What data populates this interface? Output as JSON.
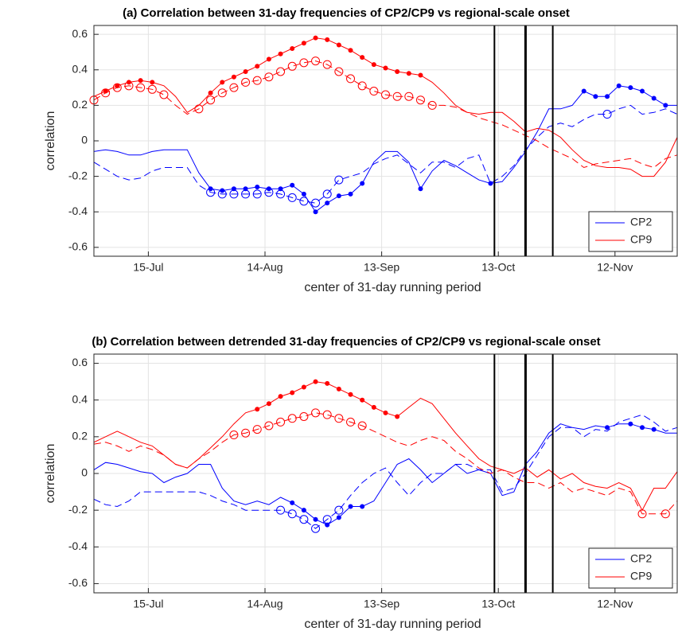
{
  "chart_data": [
    {
      "type": "line",
      "title": "(a) Correlation between 31-day frequencies of CP2/CP9 vs regional-scale onset",
      "xlabel": "center of 31-day running period",
      "ylabel": "correlation",
      "x": [
        0,
        3,
        6,
        9,
        12,
        15,
        18,
        21,
        24,
        27,
        30,
        33,
        36,
        39,
        42,
        45,
        48,
        51,
        54,
        57,
        60,
        63,
        66,
        69,
        72,
        75,
        78,
        81,
        84,
        87,
        90,
        93,
        96,
        99,
        102,
        105,
        108,
        111,
        114,
        117,
        120,
        123,
        126,
        129,
        132,
        135,
        138,
        141,
        144,
        147,
        150
      ],
      "xlim": [
        0,
        150
      ],
      "xticks": [
        {
          "value": 14,
          "label": "15-Jul"
        },
        {
          "value": 44,
          "label": "14-Aug"
        },
        {
          "value": 74,
          "label": "13-Sep"
        },
        {
          "value": 104,
          "label": "13-Oct"
        },
        {
          "value": 134,
          "label": "12-Nov"
        }
      ],
      "ylim": [
        -0.65,
        0.65
      ],
      "yticks": [
        0.6,
        0.4,
        0.2,
        0,
        -0.2,
        -0.4,
        -0.6
      ],
      "grid": true,
      "legend": "lower right",
      "vlines": [
        103,
        111,
        118
      ],
      "series": [
        {
          "name": "CP2",
          "color": "#0000ff",
          "values": [
            -0.06,
            -0.05,
            -0.06,
            -0.08,
            -0.08,
            -0.06,
            -0.05,
            -0.05,
            -0.05,
            -0.18,
            -0.27,
            -0.28,
            -0.27,
            -0.27,
            -0.26,
            -0.27,
            -0.27,
            -0.25,
            -0.3,
            -0.4,
            -0.35,
            -0.31,
            -0.3,
            -0.24,
            -0.12,
            -0.06,
            -0.06,
            -0.12,
            -0.27,
            -0.17,
            -0.11,
            -0.14,
            -0.18,
            -0.22,
            -0.24,
            -0.23,
            -0.15,
            -0.06,
            0.05,
            0.18,
            0.18,
            0.2,
            0.28,
            0.25,
            0.25,
            0.31,
            0.3,
            0.28,
            0.24,
            0.2,
            0.2
          ],
          "marked": [
            10,
            11,
            12,
            13,
            14,
            15,
            16,
            17,
            18,
            19,
            20,
            21,
            22,
            23,
            28,
            34,
            42,
            43,
            44,
            45,
            46,
            47,
            48,
            49
          ],
          "dashed_values": [
            -0.12,
            -0.16,
            -0.2,
            -0.22,
            -0.21,
            -0.17,
            -0.15,
            -0.15,
            -0.15,
            -0.25,
            -0.29,
            -0.3,
            -0.3,
            -0.3,
            -0.3,
            -0.29,
            -0.3,
            -0.32,
            -0.34,
            -0.35,
            -0.3,
            -0.22,
            -0.2,
            -0.18,
            -0.13,
            -0.1,
            -0.08,
            -0.13,
            -0.18,
            -0.12,
            -0.12,
            -0.15,
            -0.1,
            -0.08,
            -0.24,
            -0.2,
            -0.14,
            -0.05,
            0.02,
            0.08,
            0.1,
            0.08,
            0.12,
            0.15,
            0.15,
            0.18,
            0.2,
            0.15,
            0.16,
            0.18,
            0.15
          ],
          "dashed_marked": [
            10,
            11,
            12,
            13,
            14,
            15,
            16,
            17,
            18,
            19,
            20,
            21,
            44
          ]
        },
        {
          "name": "CP9",
          "color": "#ff0000",
          "values": [
            0.25,
            0.28,
            0.31,
            0.33,
            0.34,
            0.33,
            0.31,
            0.25,
            0.16,
            0.2,
            0.27,
            0.33,
            0.36,
            0.39,
            0.42,
            0.46,
            0.49,
            0.52,
            0.55,
            0.58,
            0.57,
            0.54,
            0.51,
            0.47,
            0.43,
            0.41,
            0.39,
            0.38,
            0.37,
            0.33,
            0.27,
            0.2,
            0.16,
            0.15,
            0.16,
            0.16,
            0.11,
            0.05,
            0.07,
            0.06,
            0.02,
            -0.05,
            -0.11,
            -0.14,
            -0.15,
            -0.15,
            -0.16,
            -0.2,
            -0.2,
            -0.12,
            0.02
          ],
          "marked": [
            1,
            2,
            3,
            4,
            5,
            10,
            11,
            12,
            13,
            14,
            15,
            16,
            17,
            18,
            19,
            20,
            21,
            22,
            23,
            24,
            25,
            26,
            27,
            28
          ],
          "dashed_values": [
            0.23,
            0.27,
            0.3,
            0.31,
            0.3,
            0.29,
            0.26,
            0.2,
            0.15,
            0.18,
            0.23,
            0.27,
            0.3,
            0.33,
            0.34,
            0.36,
            0.39,
            0.42,
            0.44,
            0.45,
            0.43,
            0.39,
            0.35,
            0.31,
            0.28,
            0.26,
            0.25,
            0.25,
            0.23,
            0.2,
            0.2,
            0.19,
            0.16,
            0.13,
            0.11,
            0.09,
            0.06,
            0.03,
            0,
            -0.04,
            -0.07,
            -0.1,
            -0.15,
            -0.13,
            -0.12,
            -0.11,
            -0.1,
            -0.13,
            -0.15,
            -0.1,
            -0.08
          ],
          "dashed_marked": [
            0,
            1,
            2,
            3,
            4,
            5,
            6,
            9,
            10,
            11,
            12,
            13,
            14,
            15,
            16,
            17,
            18,
            19,
            20,
            21,
            22,
            23,
            24,
            25,
            26,
            27,
            28,
            29
          ]
        }
      ]
    },
    {
      "type": "line",
      "title": "(b) Correlation between detrended 31-day frequencies of CP2/CP9 vs regional-scale onset",
      "xlabel": "center of 31-day running period",
      "ylabel": "correlation",
      "x": [
        0,
        3,
        6,
        9,
        12,
        15,
        18,
        21,
        24,
        27,
        30,
        33,
        36,
        39,
        42,
        45,
        48,
        51,
        54,
        57,
        60,
        63,
        66,
        69,
        72,
        75,
        78,
        81,
        84,
        87,
        90,
        93,
        96,
        99,
        102,
        105,
        108,
        111,
        114,
        117,
        120,
        123,
        126,
        129,
        132,
        135,
        138,
        141,
        144,
        147,
        150
      ],
      "xlim": [
        0,
        150
      ],
      "xticks": [
        {
          "value": 14,
          "label": "15-Jul"
        },
        {
          "value": 44,
          "label": "14-Aug"
        },
        {
          "value": 74,
          "label": "13-Sep"
        },
        {
          "value": 104,
          "label": "13-Oct"
        },
        {
          "value": 134,
          "label": "12-Nov"
        }
      ],
      "ylim": [
        -0.65,
        0.65
      ],
      "yticks": [
        0.6,
        0.4,
        0.2,
        0,
        -0.2,
        -0.4,
        -0.6
      ],
      "grid": true,
      "legend": "lower right",
      "vlines": [
        103,
        111,
        118
      ],
      "series": [
        {
          "name": "CP2",
          "color": "#0000ff",
          "values": [
            0.02,
            0.06,
            0.05,
            0.03,
            0.01,
            0,
            -0.05,
            -0.02,
            0,
            0.05,
            0.05,
            -0.08,
            -0.15,
            -0.17,
            -0.15,
            -0.17,
            -0.13,
            -0.16,
            -0.2,
            -0.25,
            -0.28,
            -0.24,
            -0.18,
            -0.18,
            -0.15,
            -0.05,
            0.05,
            0.08,
            0.02,
            -0.05,
            0,
            0.05,
            0,
            0.02,
            0,
            -0.12,
            -0.1,
            0.05,
            0.12,
            0.22,
            0.27,
            0.25,
            0.24,
            0.26,
            0.25,
            0.27,
            0.27,
            0.25,
            0.24,
            0.22,
            0.22
          ],
          "marked": [
            17,
            18,
            19,
            20,
            21,
            22,
            23,
            44,
            46,
            47,
            48
          ],
          "dashed_values": [
            -0.14,
            -0.17,
            -0.18,
            -0.15,
            -0.1,
            -0.1,
            -0.1,
            -0.1,
            -0.1,
            -0.1,
            -0.12,
            -0.15,
            -0.17,
            -0.2,
            -0.2,
            -0.2,
            -0.2,
            -0.22,
            -0.25,
            -0.3,
            -0.25,
            -0.2,
            -0.12,
            -0.05,
            0,
            0.03,
            -0.05,
            -0.12,
            -0.05,
            0,
            0,
            0.05,
            0.05,
            0.02,
            0.02,
            -0.1,
            -0.08,
            0,
            0.1,
            0.2,
            0.25,
            0.25,
            0.2,
            0.24,
            0.23,
            0.28,
            0.3,
            0.32,
            0.28,
            0.23,
            0.25
          ],
          "dashed_marked": [
            16,
            17,
            18,
            19,
            20,
            21
          ]
        },
        {
          "name": "CP9",
          "color": "#ff0000",
          "values": [
            0.17,
            0.2,
            0.23,
            0.2,
            0.17,
            0.15,
            0.1,
            0.05,
            0.03,
            0.08,
            0.14,
            0.2,
            0.27,
            0.33,
            0.35,
            0.38,
            0.42,
            0.44,
            0.47,
            0.5,
            0.49,
            0.46,
            0.43,
            0.4,
            0.36,
            0.33,
            0.31,
            0.36,
            0.41,
            0.38,
            0.3,
            0.22,
            0.15,
            0.08,
            0.04,
            0.02,
            0,
            0.03,
            -0.02,
            0.02,
            -0.03,
            0,
            -0.05,
            -0.07,
            -0.08,
            -0.05,
            -0.08,
            -0.2,
            -0.08,
            -0.08,
            0.01
          ],
          "marked": [
            14,
            15,
            16,
            17,
            18,
            19,
            20,
            21,
            22,
            23,
            24,
            25,
            26
          ],
          "dashed_values": [
            0.16,
            0.17,
            0.15,
            0.12,
            0.15,
            0.13,
            0.1,
            0.05,
            0.03,
            0.08,
            0.12,
            0.17,
            0.21,
            0.22,
            0.24,
            0.26,
            0.28,
            0.3,
            0.31,
            0.33,
            0.32,
            0.3,
            0.28,
            0.26,
            0.23,
            0.2,
            0.17,
            0.15,
            0.18,
            0.2,
            0.18,
            0.12,
            0.08,
            0.03,
            0,
            0.02,
            -0.02,
            -0.05,
            -0.05,
            -0.08,
            -0.05,
            -0.1,
            -0.08,
            -0.1,
            -0.12,
            -0.08,
            -0.1,
            -0.22,
            -0.22,
            -0.22,
            -0.15
          ],
          "dashed_marked": [
            12,
            13,
            14,
            15,
            16,
            17,
            18,
            19,
            20,
            21,
            22,
            23,
            47,
            49
          ]
        }
      ]
    }
  ]
}
